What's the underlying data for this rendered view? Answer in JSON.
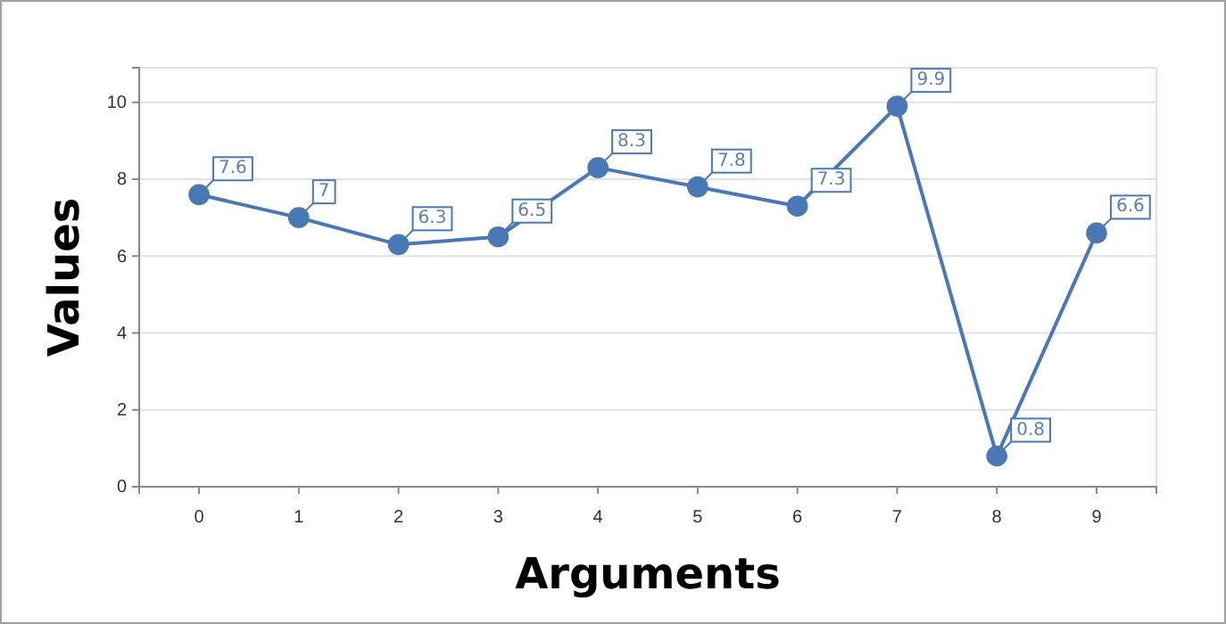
{
  "chart_data": {
    "type": "line",
    "xlabel": "Arguments",
    "ylabel": "Values",
    "x": [
      0,
      1,
      2,
      3,
      4,
      5,
      6,
      7,
      8,
      9
    ],
    "series": [
      {
        "color": "#4a78b5",
        "values": [
          7.6,
          7,
          6.3,
          6.5,
          8.3,
          7.8,
          7.3,
          9.9,
          0.8,
          6.6
        ]
      }
    ],
    "xlim": [
      -0.6,
      9.6
    ],
    "xticks": [
      0,
      1,
      2,
      3,
      4,
      5,
      6,
      7,
      8,
      9
    ],
    "ylim": [
      0,
      10.9
    ],
    "yticks": [
      0,
      2,
      4,
      6,
      8,
      10
    ],
    "grid": "y",
    "marker": "circle",
    "line_style": "solid",
    "data_labels": true
  }
}
